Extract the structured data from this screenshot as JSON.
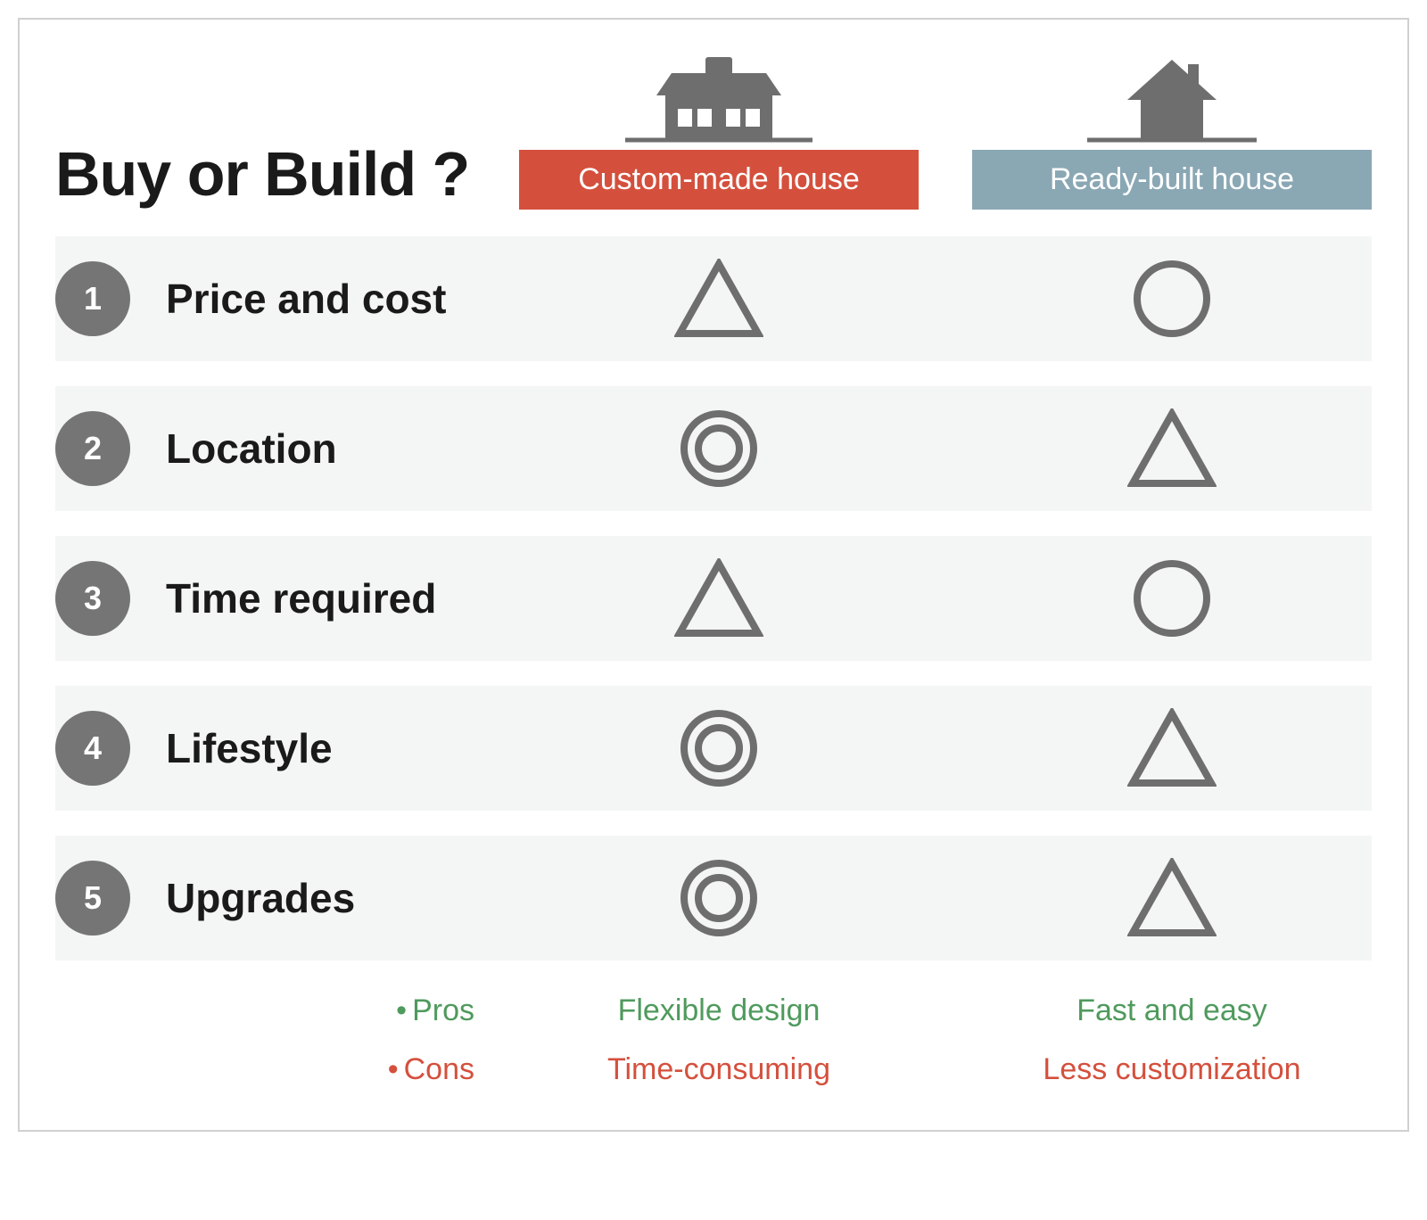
{
  "title": "Buy or Build ?",
  "colors": {
    "icon_gray": "#6e6e6e",
    "badge_gray": "#757575",
    "row_bg": "#f4f5f5",
    "col1_bg": "#d4503d",
    "col2_bg": "#8aa7b4",
    "pros_green": "#4f9a5d",
    "cons_red": "#d4503d",
    "text_dark": "#1a1a1a",
    "white": "#ffffff"
  },
  "columns": [
    {
      "label": "Custom-made house",
      "icon": "house-detailed"
    },
    {
      "label": "Ready-built house",
      "icon": "house-simple"
    }
  ],
  "rows": [
    {
      "num": "1",
      "label": "Price and cost",
      "cells": [
        "triangle",
        "circle"
      ]
    },
    {
      "num": "2",
      "label": "Location",
      "cells": [
        "double-circle",
        "triangle"
      ]
    },
    {
      "num": "3",
      "label": "Time required",
      "cells": [
        "triangle",
        "circle"
      ]
    },
    {
      "num": "4",
      "label": "Lifestyle",
      "cells": [
        "double-circle",
        "triangle"
      ]
    },
    {
      "num": "5",
      "label": "Upgrades",
      "cells": [
        "double-circle",
        "triangle"
      ]
    }
  ],
  "footer": {
    "pros_label": "Pros",
    "cons_label": "Cons",
    "pros": [
      "Flexible design",
      "Fast and easy"
    ],
    "cons": [
      "Time-consuming",
      "Less customization"
    ]
  },
  "shape_style": {
    "stroke_width": 8,
    "size": 90
  }
}
